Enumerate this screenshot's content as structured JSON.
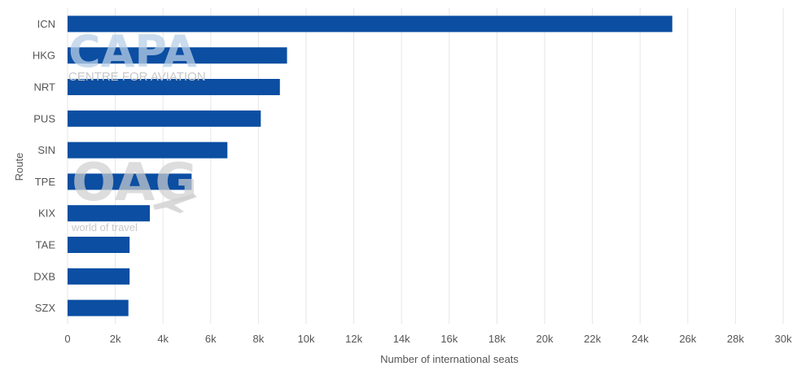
{
  "chart_data": {
    "type": "bar",
    "orientation": "horizontal",
    "title": "",
    "xlabel": "Number of international seats",
    "ylabel": "Route",
    "categories": [
      "ICN",
      "HKG",
      "NRT",
      "PUS",
      "SIN",
      "TPE",
      "KIX",
      "TAE",
      "DXB",
      "SZX"
    ],
    "values": [
      25350,
      9200,
      8900,
      8100,
      6700,
      5200,
      3450,
      2600,
      2600,
      2550
    ],
    "xlim": [
      0,
      30000
    ],
    "xticks": [
      0,
      2000,
      4000,
      6000,
      8000,
      10000,
      12000,
      14000,
      16000,
      18000,
      20000,
      22000,
      24000,
      26000,
      28000,
      30000
    ],
    "xtick_labels": [
      "0",
      "2k",
      "4k",
      "6k",
      "8k",
      "10k",
      "12k",
      "14k",
      "16k",
      "18k",
      "20k",
      "22k",
      "24k",
      "26k",
      "28k",
      "30k"
    ],
    "grid": true,
    "legend": "none",
    "bar_color": "#0b4ea2",
    "grid_color": "#e6e6e6"
  },
  "watermarks": {
    "capa_logo": "CAPA",
    "capa_tagline": "CENTRE FOR AVIATION",
    "oag_logo": "OAG",
    "oag_tagline": "world of travel"
  }
}
